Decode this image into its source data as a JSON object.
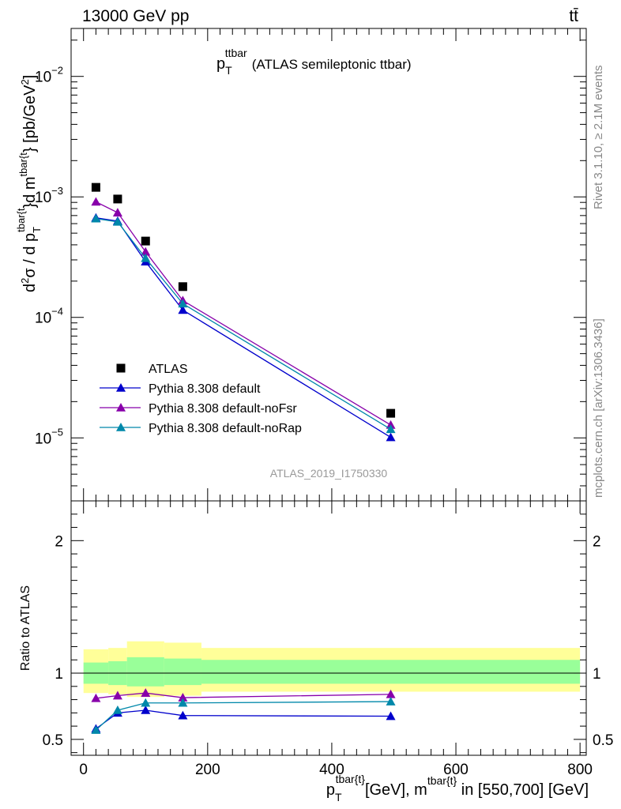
{
  "header": {
    "left": "13000 GeV pp",
    "right": "tt̄"
  },
  "side_labels": {
    "rivet": "Rivet 3.1.10, ≥ 2.1M events",
    "mcplots": "mcplots.cern.ch [arXiv:1306.3436]"
  },
  "watermark": "ATLAS_2019_I1750330",
  "colors": {
    "atlas": "#000000",
    "default": "#0000cc",
    "noFsr": "#8800aa",
    "noRap": "#0088aa",
    "band_yellow": "#ffff99",
    "band_green": "#99ff99"
  },
  "chart_data": [
    {
      "type": "scatter",
      "title": {
        "main": "p",
        "sub": "T",
        "sup": "ttbar",
        "rest": "(ATLAS semileptonic ttbar)"
      },
      "ylabel": {
        "d2": "d",
        "sigma": "σ",
        "slash": " /  d p",
        "sub1": "T",
        "sup1": "tbar{t",
        "mid": "}d m",
        "sup2": "tbar{t",
        "end": "} [pb/GeV",
        "sup3": "2",
        "close": "]"
      },
      "yscale": "log",
      "ylim": [
        3e-06,
        0.025
      ],
      "xlim": [
        -20,
        810
      ],
      "ytick_labels": [
        {
          "value": 0.01,
          "base": "10",
          "exp": "−2"
        },
        {
          "value": 0.001,
          "base": "10",
          "exp": "−3"
        },
        {
          "value": 0.0001,
          "base": "10",
          "exp": "−4"
        },
        {
          "value": 1e-05,
          "base": "10",
          "exp": "−5"
        }
      ],
      "legend": {
        "placement": "lower-left",
        "entries": [
          {
            "key": "atlas",
            "label": "ATLAS"
          },
          {
            "key": "default",
            "label": "Pythia 8.308 default"
          },
          {
            "key": "noFsr",
            "label": "Pythia 8.308 default-noFsr"
          },
          {
            "key": "noRap",
            "label": "Pythia 8.308 default-noRap"
          }
        ]
      },
      "x": [
        20,
        55,
        100,
        160,
        495
      ],
      "series": [
        {
          "key": "atlas",
          "name": "ATLAS",
          "marker": "square",
          "values": [
            0.0012,
            0.00096,
            0.00043,
            0.00018,
            1.6e-05
          ]
        },
        {
          "key": "default",
          "name": "Pythia 8.308 default",
          "marker": "triangle",
          "values": [
            0.00067,
            0.00063,
            0.00029,
            0.000115,
            1.01e-05
          ]
        },
        {
          "key": "noFsr",
          "name": "Pythia 8.308 default-noFsr",
          "marker": "triangle",
          "values": [
            0.00091,
            0.00074,
            0.00035,
            0.000138,
            1.28e-05
          ]
        },
        {
          "key": "noRap",
          "name": "Pythia 8.308 default-noRap",
          "marker": "triangle",
          "values": [
            0.00066,
            0.00062,
            0.00031,
            0.00013,
            1.18e-05
          ]
        }
      ]
    },
    {
      "type": "line",
      "ylabel": "Ratio to ATLAS",
      "ylim": [
        0.38,
        2.3
      ],
      "xlim": [
        -20,
        810
      ],
      "yticks": [
        0.5,
        1,
        2
      ],
      "ytick_labels": [
        "0.5",
        "1",
        "2"
      ],
      "xticks": [
        0,
        200,
        400,
        600,
        800
      ],
      "xtick_labels": [
        "0",
        "200",
        "400",
        "600",
        "800"
      ],
      "xlabel": {
        "p": "p",
        "sub1": "T",
        "sup1": "tbar{t}",
        "mid": "[GeV], m",
        "sup2": "tbar{t}",
        "end": " in [550,700] [GeV]"
      },
      "reference_line": 1,
      "bands": [
        {
          "x0": 0,
          "x1": 40,
          "green_lo": 0.92,
          "green_hi": 1.08,
          "yellow_lo": 0.85,
          "yellow_hi": 1.18
        },
        {
          "x0": 40,
          "x1": 70,
          "green_lo": 0.91,
          "green_hi": 1.09,
          "yellow_lo": 0.84,
          "yellow_hi": 1.19
        },
        {
          "x0": 70,
          "x1": 130,
          "green_lo": 0.9,
          "green_hi": 1.12,
          "yellow_lo": 0.82,
          "yellow_hi": 1.24
        },
        {
          "x0": 130,
          "x1": 190,
          "green_lo": 0.91,
          "green_hi": 1.11,
          "yellow_lo": 0.83,
          "yellow_hi": 1.23
        },
        {
          "x0": 190,
          "x1": 800,
          "green_lo": 0.92,
          "green_hi": 1.1,
          "yellow_lo": 0.86,
          "yellow_hi": 1.19
        }
      ],
      "x": [
        20,
        55,
        100,
        160,
        495
      ],
      "series": [
        {
          "key": "default",
          "name": "Pythia 8.308 default",
          "values": [
            0.58,
            0.7,
            0.72,
            0.68,
            0.675
          ]
        },
        {
          "key": "noFsr",
          "name": "Pythia 8.308 default-noFsr",
          "values": [
            0.81,
            0.83,
            0.85,
            0.815,
            0.84
          ]
        },
        {
          "key": "noRap",
          "name": "Pythia 8.308 default-noRap",
          "values": [
            0.57,
            0.72,
            0.775,
            0.775,
            0.785
          ]
        }
      ]
    }
  ]
}
